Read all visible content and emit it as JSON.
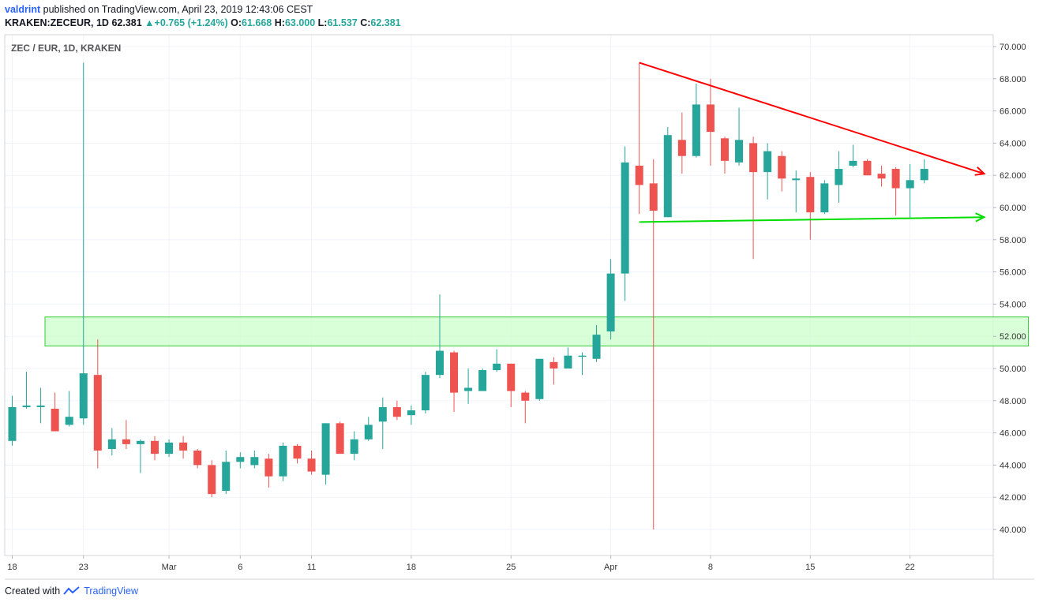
{
  "header": {
    "author": "valdrint",
    "published_text": "published on TradingView.com, April 23, 2019 12:43:06 CEST"
  },
  "ticker": {
    "symbol": "KRAKEN:ZECEUR, 1D",
    "last": "62.381",
    "change": "+0.765 (+1.24%)",
    "o_label": "O:",
    "o_value": "61.668",
    "h_label": "H:",
    "h_value": "63.000",
    "l_label": "L:",
    "l_value": "61.537",
    "c_label": "C:",
    "c_value": "62.381"
  },
  "legend": "ZEC / EUR, 1D, KRAKEN",
  "footer": {
    "created_with": "Created with",
    "brand": "TradingView"
  },
  "colors": {
    "up": "#26a69a",
    "down": "#ef5350",
    "zone_fill": "#ccffcc",
    "zone_stroke": "#33cc33",
    "trend_red": "#ff0000",
    "trend_green": "#00dd00",
    "grid": "#f0f3fa"
  },
  "chart_data": {
    "type": "candlestick",
    "title": "ZEC / EUR, 1D, KRAKEN",
    "y_ticks": [
      "40.000",
      "42.000",
      "44.000",
      "46.000",
      "48.000",
      "50.000",
      "52.000",
      "54.000",
      "56.000",
      "58.000",
      "60.000",
      "62.000",
      "64.000",
      "66.000",
      "68.000",
      "70.000"
    ],
    "ylim": [
      39.0,
      70.7
    ],
    "x_tick_labels": [
      {
        "day": 0,
        "label": "18"
      },
      {
        "day": 5,
        "label": "23"
      },
      {
        "day": 11,
        "label": "Mar"
      },
      {
        "day": 16,
        "label": "6"
      },
      {
        "day": 21,
        "label": "11"
      },
      {
        "day": 28,
        "label": "18"
      },
      {
        "day": 35,
        "label": "25"
      },
      {
        "day": 42,
        "label": "Apr"
      },
      {
        "day": 49,
        "label": "8"
      },
      {
        "day": 56,
        "label": "15"
      },
      {
        "day": 63,
        "label": "22"
      }
    ],
    "candles": [
      {
        "day": 0,
        "o": 45.5,
        "h": 48.3,
        "l": 45.2,
        "c": 47.6
      },
      {
        "day": 1,
        "o": 47.6,
        "h": 49.8,
        "l": 47.5,
        "c": 47.7
      },
      {
        "day": 2,
        "o": 47.6,
        "h": 48.8,
        "l": 46.6,
        "c": 47.7
      },
      {
        "day": 3,
        "o": 47.5,
        "h": 48.5,
        "l": 46.1,
        "c": 46.1
      },
      {
        "day": 4,
        "o": 46.5,
        "h": 48.6,
        "l": 46.4,
        "c": 47.0
      },
      {
        "day": 5,
        "o": 46.9,
        "h": 69.0,
        "l": 46.5,
        "c": 49.7
      },
      {
        "day": 6,
        "o": 49.6,
        "h": 51.8,
        "l": 43.8,
        "c": 44.9
      },
      {
        "day": 7,
        "o": 45.0,
        "h": 46.3,
        "l": 44.6,
        "c": 45.6
      },
      {
        "day": 8,
        "o": 45.6,
        "h": 46.8,
        "l": 45.0,
        "c": 45.3
      },
      {
        "day": 9,
        "o": 45.3,
        "h": 45.6,
        "l": 43.5,
        "c": 45.5
      },
      {
        "day": 10,
        "o": 45.5,
        "h": 45.8,
        "l": 44.3,
        "c": 44.7
      },
      {
        "day": 11,
        "o": 44.7,
        "h": 45.6,
        "l": 44.5,
        "c": 45.4
      },
      {
        "day": 12,
        "o": 45.4,
        "h": 45.8,
        "l": 44.4,
        "c": 44.9
      },
      {
        "day": 13,
        "o": 44.9,
        "h": 45.0,
        "l": 43.8,
        "c": 44.0
      },
      {
        "day": 14,
        "o": 44.0,
        "h": 44.3,
        "l": 42.0,
        "c": 42.2
      },
      {
        "day": 15,
        "o": 42.4,
        "h": 44.9,
        "l": 42.2,
        "c": 44.2
      },
      {
        "day": 16,
        "o": 44.2,
        "h": 44.8,
        "l": 43.8,
        "c": 44.5
      },
      {
        "day": 17,
        "o": 44.0,
        "h": 44.9,
        "l": 43.8,
        "c": 44.5
      },
      {
        "day": 18,
        "o": 44.4,
        "h": 44.7,
        "l": 42.6,
        "c": 43.3
      },
      {
        "day": 19,
        "o": 43.3,
        "h": 45.4,
        "l": 43.0,
        "c": 45.2
      },
      {
        "day": 20,
        "o": 45.2,
        "h": 45.3,
        "l": 44.1,
        "c": 44.4
      },
      {
        "day": 21,
        "o": 44.4,
        "h": 44.9,
        "l": 43.4,
        "c": 43.6
      },
      {
        "day": 22,
        "o": 43.4,
        "h": 46.6,
        "l": 42.8,
        "c": 46.6
      },
      {
        "day": 23,
        "o": 46.6,
        "h": 46.7,
        "l": 44.7,
        "c": 44.7
      },
      {
        "day": 24,
        "o": 44.7,
        "h": 46.1,
        "l": 44.3,
        "c": 45.6
      },
      {
        "day": 25,
        "o": 45.6,
        "h": 47.0,
        "l": 45.5,
        "c": 46.5
      },
      {
        "day": 26,
        "o": 46.7,
        "h": 48.2,
        "l": 45.0,
        "c": 47.6
      },
      {
        "day": 27,
        "o": 47.6,
        "h": 48.0,
        "l": 46.8,
        "c": 47.0
      },
      {
        "day": 28,
        "o": 47.1,
        "h": 47.7,
        "l": 46.5,
        "c": 47.4
      },
      {
        "day": 29,
        "o": 47.4,
        "h": 49.8,
        "l": 47.2,
        "c": 49.6
      },
      {
        "day": 30,
        "o": 49.6,
        "h": 54.6,
        "l": 49.4,
        "c": 51.1
      },
      {
        "day": 31,
        "o": 51.0,
        "h": 51.1,
        "l": 47.3,
        "c": 48.5
      },
      {
        "day": 32,
        "o": 48.6,
        "h": 50.0,
        "l": 47.8,
        "c": 48.8
      },
      {
        "day": 33,
        "o": 48.6,
        "h": 50.0,
        "l": 48.6,
        "c": 49.9
      },
      {
        "day": 34,
        "o": 49.9,
        "h": 51.2,
        "l": 49.8,
        "c": 50.3
      },
      {
        "day": 35,
        "o": 50.3,
        "h": 50.3,
        "l": 47.6,
        "c": 48.6
      },
      {
        "day": 36,
        "o": 48.5,
        "h": 48.6,
        "l": 46.6,
        "c": 48.0
      },
      {
        "day": 37,
        "o": 48.1,
        "h": 50.6,
        "l": 48.0,
        "c": 50.6
      },
      {
        "day": 38,
        "o": 50.4,
        "h": 50.7,
        "l": 49.0,
        "c": 50.0
      },
      {
        "day": 39,
        "o": 50.0,
        "h": 51.3,
        "l": 50.0,
        "c": 50.8
      },
      {
        "day": 40,
        "o": 50.8,
        "h": 51.0,
        "l": 49.6,
        "c": 50.8
      },
      {
        "day": 41,
        "o": 50.6,
        "h": 52.7,
        "l": 50.4,
        "c": 52.1
      },
      {
        "day": 42,
        "o": 52.3,
        "h": 56.8,
        "l": 51.8,
        "c": 55.9
      },
      {
        "day": 43,
        "o": 55.9,
        "h": 63.8,
        "l": 54.2,
        "c": 62.8
      },
      {
        "day": 44,
        "o": 62.6,
        "h": 69.0,
        "l": 59.6,
        "c": 61.4
      },
      {
        "day": 45,
        "o": 61.5,
        "h": 63.0,
        "l": 40.0,
        "c": 59.8
      },
      {
        "day": 46,
        "o": 59.4,
        "h": 65.0,
        "l": 59.4,
        "c": 64.5
      },
      {
        "day": 47,
        "o": 64.2,
        "h": 65.9,
        "l": 62.1,
        "c": 63.2
      },
      {
        "day": 48,
        "o": 63.2,
        "h": 67.7,
        "l": 63.1,
        "c": 66.4
      },
      {
        "day": 49,
        "o": 66.4,
        "h": 68.0,
        "l": 62.6,
        "c": 64.7
      },
      {
        "day": 50,
        "o": 64.3,
        "h": 64.4,
        "l": 62.1,
        "c": 62.9
      },
      {
        "day": 51,
        "o": 62.8,
        "h": 66.2,
        "l": 62.6,
        "c": 64.2
      },
      {
        "day": 52,
        "o": 64.0,
        "h": 64.4,
        "l": 56.8,
        "c": 62.2
      },
      {
        "day": 53,
        "o": 62.2,
        "h": 64.0,
        "l": 60.5,
        "c": 63.5
      },
      {
        "day": 54,
        "o": 63.2,
        "h": 63.5,
        "l": 61.0,
        "c": 61.8
      },
      {
        "day": 55,
        "o": 61.7,
        "h": 62.3,
        "l": 59.7,
        "c": 61.8
      },
      {
        "day": 56,
        "o": 61.9,
        "h": 62.2,
        "l": 58.0,
        "c": 59.7
      },
      {
        "day": 57,
        "o": 59.7,
        "h": 61.7,
        "l": 59.6,
        "c": 61.5
      },
      {
        "day": 58,
        "o": 61.4,
        "h": 63.5,
        "l": 60.3,
        "c": 62.4
      },
      {
        "day": 59,
        "o": 62.6,
        "h": 63.9,
        "l": 62.5,
        "c": 62.9
      },
      {
        "day": 60,
        "o": 62.9,
        "h": 63.0,
        "l": 62.0,
        "c": 62.0
      },
      {
        "day": 61,
        "o": 62.1,
        "h": 62.6,
        "l": 61.3,
        "c": 61.8
      },
      {
        "day": 62,
        "o": 62.4,
        "h": 62.5,
        "l": 59.5,
        "c": 61.2
      },
      {
        "day": 63,
        "o": 61.2,
        "h": 62.7,
        "l": 59.3,
        "c": 61.7
      },
      {
        "day": 64,
        "o": 61.7,
        "h": 63.0,
        "l": 61.5,
        "c": 62.4
      }
    ],
    "support_zone": {
      "from_day": 2.3,
      "to_day": 71.3,
      "low": 51.4,
      "high": 53.2
    },
    "trendlines": [
      {
        "name": "resistance",
        "color": "#ff0000",
        "from": {
          "day": 44,
          "price": 69.0
        },
        "to": {
          "day": 68.2,
          "price": 62.1
        }
      },
      {
        "name": "support",
        "color": "#00dd00",
        "from": {
          "day": 44,
          "price": 59.1
        },
        "to": {
          "day": 68.2,
          "price": 59.4
        }
      }
    ]
  }
}
